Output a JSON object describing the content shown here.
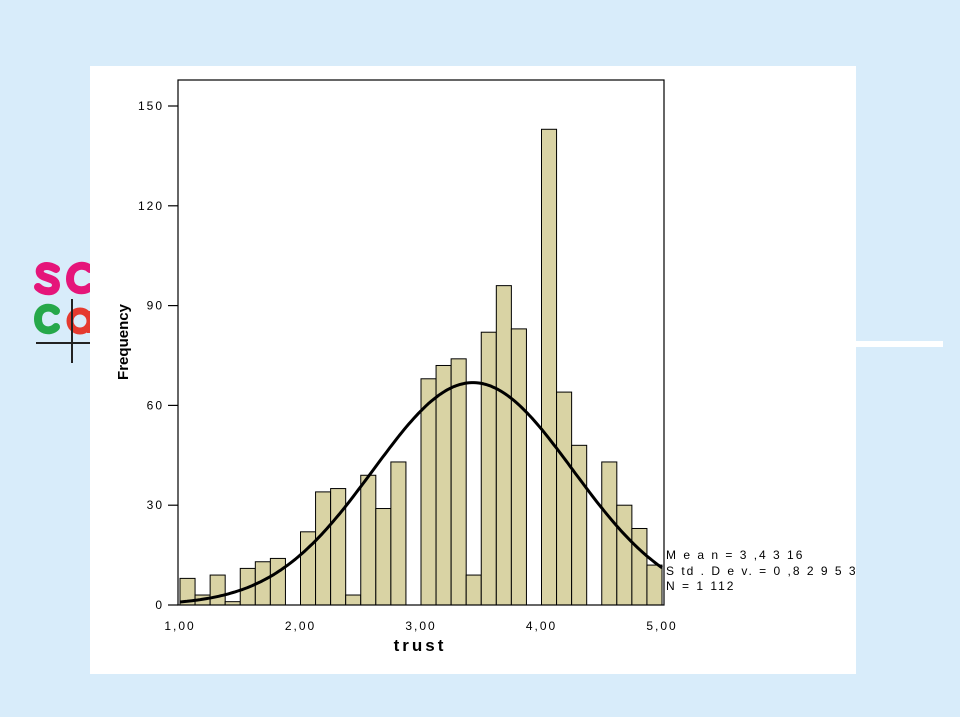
{
  "colors": {
    "background": "#d8ecfa",
    "panel": "#ffffff",
    "bar_fill": "#d9d3a4",
    "bar_stroke": "#000000",
    "curve": "#000000",
    "logo_pink": "#e5157a",
    "logo_green": "#26a84a",
    "logo_red": "#e53a2f"
  },
  "logo": {
    "icon": "socsci-logo-icon"
  },
  "chart_data": {
    "type": "bar",
    "subtype": "histogram",
    "xlabel": "trust",
    "ylabel": "Frequency",
    "xlim": [
      1.0,
      5.0
    ],
    "ylim": [
      0,
      150
    ],
    "x_ticks": [
      1,
      2,
      3,
      4,
      5
    ],
    "x_tick_labels": [
      "1,00",
      "2,00",
      "3,00",
      "4,00",
      "5,00"
    ],
    "y_ticks": [
      0,
      30,
      60,
      90,
      120,
      150
    ],
    "y_tick_labels": [
      "0",
      "30",
      "60",
      "90",
      "120",
      "150"
    ],
    "bin_width": 0.125,
    "bin_starts": [
      1.0,
      1.125,
      1.25,
      1.375,
      1.5,
      1.625,
      1.75,
      1.875,
      2.0,
      2.125,
      2.25,
      2.375,
      2.5,
      2.625,
      2.75,
      2.875,
      3.0,
      3.125,
      3.25,
      3.375,
      3.5,
      3.625,
      3.75,
      3.875,
      4.0,
      4.125,
      4.25,
      4.375,
      4.5,
      4.625,
      4.75,
      4.875
    ],
    "values": [
      8,
      3,
      9,
      1,
      11,
      13,
      14,
      0,
      22,
      34,
      35,
      3,
      39,
      29,
      43,
      0,
      68,
      72,
      74,
      9,
      82,
      96,
      83,
      0,
      143,
      64,
      48,
      0,
      43,
      30,
      23,
      12
    ],
    "normal_curve": {
      "mean": 3.4316,
      "sd": 0.82953,
      "n": 1112
    },
    "annotations": [
      "M e a n  =  3 ,4 3 16",
      "S td .  D e v.  =  0 ,8 2 9 5 3",
      "N  =  1  112"
    ],
    "grid": false,
    "legend": "none"
  }
}
